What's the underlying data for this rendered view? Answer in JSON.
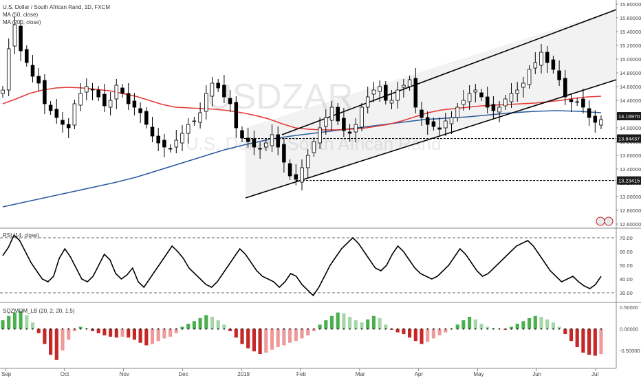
{
  "legend": {
    "symbol_title": "U.S. Dollar / South African Rand, 1D, FXCM",
    "ma50": "MA (50, close)",
    "ma200": "MA (200, close)",
    "rsi": "RSI (14, close)",
    "sqz": "SQZMOM_LB (20, 2, 20, 1.5)"
  },
  "watermark": {
    "ticker": "USDZAR",
    "name": "U.S. Dollar / South African Rand"
  },
  "colors": {
    "up": "#ffffff",
    "down": "#000000",
    "ma50": "#e53935",
    "ma200": "#2c5aa0",
    "channel": "#000000",
    "channel_fill": "#f2f2f2",
    "hist_pos_strong": "#4caf50",
    "hist_pos_weak": "#a5d6a7",
    "hist_neg_strong": "#c62828",
    "hist_neg_weak": "#ef9a9a",
    "marker_fill": "#1a1a1a"
  },
  "chart_data": [
    {
      "type": "candlestick",
      "title": "U.S. Dollar / South African Rand, 1D, FXCM",
      "ylim": [
        12.6,
        15.8
      ],
      "price_ticks": [
        "15.80000",
        "15.60000",
        "15.40000",
        "15.20000",
        "15.00000",
        "14.80000",
        "14.60000",
        "14.40000",
        "14.20000",
        "14.00000",
        "13.80000",
        "13.60000",
        "13.40000",
        "13.20000",
        "13.00000",
        "12.80000",
        "12.60000"
      ],
      "markers": [
        {
          "label": "14.16970",
          "value": 14.1697
        },
        {
          "label": "13.84437",
          "value": 13.84437
        },
        {
          "label": "13.23415",
          "value": 13.23415
        }
      ],
      "horizontal_levels": [
        13.84437,
        13.23415
      ],
      "closes": [
        14.55,
        15.15,
        15.5,
        15.12,
        14.95,
        14.75,
        14.65,
        14.35,
        14.25,
        14.15,
        14.05,
        14.0,
        14.35,
        14.5,
        14.6,
        14.55,
        14.45,
        14.32,
        14.4,
        14.62,
        14.5,
        14.35,
        14.3,
        14.22,
        14.05,
        13.88,
        13.78,
        13.72,
        13.7,
        13.82,
        13.92,
        14.05,
        14.1,
        14.22,
        14.5,
        14.65,
        14.58,
        14.45,
        14.35,
        14.0,
        13.85,
        13.8,
        13.72,
        13.7,
        13.78,
        13.9,
        13.72,
        13.5,
        13.3,
        13.25,
        13.42,
        13.6,
        13.8,
        14.0,
        14.15,
        14.3,
        14.1,
        13.96,
        13.92,
        14.05,
        14.3,
        14.45,
        14.55,
        14.6,
        14.4,
        14.4,
        14.55,
        14.62,
        14.7,
        14.3,
        14.15,
        14.05,
        14.02,
        13.98,
        14.1,
        14.15,
        14.3,
        14.4,
        14.5,
        14.55,
        14.45,
        14.3,
        14.25,
        14.3,
        14.42,
        14.5,
        14.55,
        14.65,
        14.85,
        14.95,
        15.1,
        14.95,
        14.85,
        14.7,
        14.45,
        14.38,
        14.38,
        14.3,
        14.15,
        14.08,
        14.12
      ],
      "ma50": [
        14.35,
        14.42,
        14.5,
        14.55,
        14.58,
        14.59,
        14.58,
        14.56,
        14.54,
        14.5,
        14.46,
        14.4,
        14.34,
        14.3,
        14.29,
        14.28,
        14.27,
        14.25,
        14.22,
        14.18,
        14.13,
        14.06,
        14.0,
        13.98,
        13.97,
        13.97,
        13.98,
        13.99,
        14.02,
        14.05,
        14.1,
        14.16,
        14.22,
        14.26,
        14.28,
        14.3,
        14.32,
        14.33,
        14.34,
        14.35,
        14.36,
        14.38,
        14.4,
        14.43,
        14.45,
        14.46
      ],
      "ma200": [
        12.85,
        12.92,
        12.99,
        13.06,
        13.13,
        13.2,
        13.28,
        13.38,
        13.48,
        13.58,
        13.68,
        13.76,
        13.83,
        13.88,
        13.92,
        13.96,
        14.0,
        14.04,
        14.08,
        14.12,
        14.14,
        14.16,
        14.19,
        14.22,
        14.24,
        14.25,
        14.24,
        14.22
      ]
    },
    {
      "type": "line",
      "title": "RSI (14, close)",
      "ylim": [
        25,
        75
      ],
      "ticks": [
        "70.00",
        "60.00",
        "50.00",
        "40.00",
        "30.00"
      ],
      "levels": [
        70,
        30
      ],
      "values": [
        57,
        63,
        72,
        68,
        60,
        52,
        46,
        40,
        38,
        42,
        55,
        62,
        56,
        48,
        40,
        38,
        42,
        50,
        58,
        54,
        44,
        40,
        43,
        48,
        38,
        34,
        40,
        46,
        52,
        58,
        64,
        60,
        55,
        48,
        44,
        40,
        36,
        34,
        38,
        44,
        50,
        56,
        62,
        58,
        52,
        46,
        42,
        40,
        38,
        34,
        38,
        44,
        42,
        36,
        32,
        28,
        34,
        42,
        50,
        56,
        62,
        66,
        70,
        66,
        60,
        54,
        48,
        46,
        50,
        58,
        64,
        60,
        54,
        48,
        44,
        42,
        40,
        42,
        46,
        50,
        56,
        62,
        58,
        52,
        46,
        42,
        44,
        48,
        52,
        56,
        60,
        64,
        66,
        68,
        64,
        58,
        52,
        46,
        42,
        38,
        40,
        42,
        38,
        35,
        33,
        36,
        42
      ]
    },
    {
      "type": "bar",
      "title": "SQZMOM_LB (20, 2, 20, 1.5)",
      "ylim": [
        -0.85,
        0.55
      ],
      "ticks": [
        "0.50000",
        "0.00000",
        "-0.50000"
      ],
      "values": [
        0.2,
        0.3,
        0.38,
        0.42,
        0.32,
        0.15,
        -0.1,
        -0.35,
        -0.6,
        -0.72,
        -0.5,
        -0.25,
        -0.05,
        0.05,
        0.02,
        -0.05,
        -0.1,
        -0.15,
        -0.18,
        -0.2,
        -0.18,
        -0.2,
        -0.25,
        -0.32,
        -0.38,
        -0.35,
        -0.28,
        -0.22,
        -0.18,
        -0.1,
        0.05,
        0.12,
        0.18,
        0.25,
        0.32,
        0.28,
        0.2,
        0.1,
        -0.05,
        -0.2,
        -0.35,
        -0.45,
        -0.52,
        -0.58,
        -0.55,
        -0.48,
        -0.42,
        -0.38,
        -0.32,
        -0.28,
        -0.22,
        -0.15,
        -0.05,
        0.1,
        0.2,
        0.3,
        0.38,
        0.36,
        0.28,
        0.2,
        0.15,
        0.22,
        0.3,
        0.25,
        0.1,
        -0.02,
        -0.08,
        -0.12,
        -0.2,
        -0.28,
        -0.35,
        -0.3,
        -0.22,
        -0.15,
        -0.08,
        0.0,
        0.1,
        0.2,
        0.28,
        0.22,
        0.12,
        0.05,
        0.02,
        0.0,
        -0.02,
        0.05,
        0.12,
        0.18,
        0.25,
        0.3,
        0.28,
        0.22,
        0.15,
        0.05,
        -0.12,
        -0.28,
        -0.42,
        -0.55,
        -0.6,
        -0.62,
        -0.58
      ]
    }
  ],
  "x_axis": {
    "labels": [
      "Sep",
      "Oct",
      "Nov",
      "Dec",
      "2019",
      "Feb",
      "Mar",
      "Apr",
      "May",
      "Jun",
      "Jul"
    ]
  }
}
